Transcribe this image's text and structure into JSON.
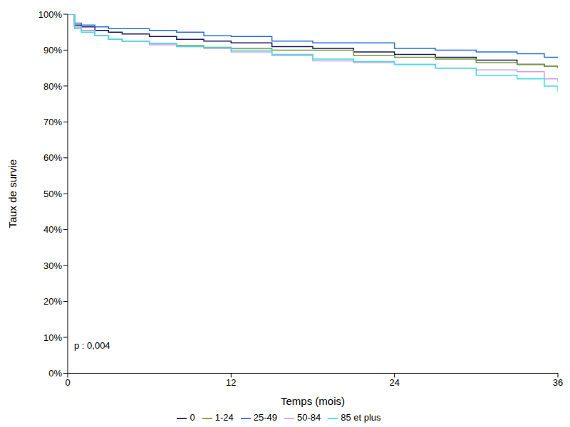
{
  "chart_data": {
    "type": "line",
    "line_style": "step",
    "legend": "bottom",
    "xlabel": "Temps (mois)",
    "ylabel": "Taux de survie",
    "annotations": [
      "p : 0,004"
    ],
    "x": [
      0,
      0.5,
      1,
      2,
      3,
      4,
      6,
      8,
      10,
      12,
      15,
      18,
      21,
      24,
      27,
      30,
      33,
      35,
      36
    ],
    "series": [
      {
        "name": "0",
        "color": "#1a1a5e",
        "values": [
          100,
          97,
          96.5,
          95.5,
          95,
          94.5,
          93.8,
          93,
          92.5,
          92,
          91,
          90.5,
          89.5,
          88.8,
          88,
          87.2,
          86,
          85.5,
          85
        ]
      },
      {
        "name": "1-24",
        "color": "#7a9a3a",
        "values": [
          100,
          96.5,
          95.5,
          94,
          93,
          92.5,
          91.8,
          91.3,
          90.8,
          90.5,
          90,
          90,
          88.5,
          88,
          87.5,
          86.5,
          86,
          85.5,
          85
        ]
      },
      {
        "name": "25-49",
        "color": "#2a6fdb",
        "values": [
          100,
          97.5,
          97,
          96.5,
          96,
          96,
          95.5,
          95,
          94,
          93.8,
          92.5,
          92,
          92,
          90.5,
          90,
          89.5,
          89,
          88,
          88
        ]
      },
      {
        "name": "50-84",
        "color": "#c8a0e8",
        "values": [
          100,
          96.5,
          95.5,
          94,
          93,
          92.5,
          91.5,
          91,
          90.5,
          89.5,
          88.5,
          87,
          86.5,
          86,
          85,
          84.5,
          84,
          82,
          81
        ]
      },
      {
        "name": "85 et plus",
        "color": "#40dde8",
        "values": [
          100,
          96,
          95,
          94,
          93,
          92.5,
          91.8,
          91,
          90.7,
          90,
          88.8,
          87.5,
          86.8,
          86,
          85,
          83,
          82,
          80,
          78.5
        ]
      }
    ],
    "xlim": [
      0,
      36
    ],
    "xticks": [
      0,
      12,
      24,
      36
    ],
    "ylim": [
      0,
      100
    ],
    "yticks": [
      {
        "value": 0,
        "label": "0%"
      },
      {
        "value": 10,
        "label": "10%"
      },
      {
        "value": 20,
        "label": "20%"
      },
      {
        "value": 30,
        "label": "30%"
      },
      {
        "value": 40,
        "label": "40%"
      },
      {
        "value": 50,
        "label": "50%"
      },
      {
        "value": 60,
        "label": "60%"
      },
      {
        "value": 70,
        "label": "70%"
      },
      {
        "value": 80,
        "label": "80%"
      },
      {
        "value": 90,
        "label": "90%"
      },
      {
        "value": 100,
        "label": "100%"
      }
    ]
  }
}
